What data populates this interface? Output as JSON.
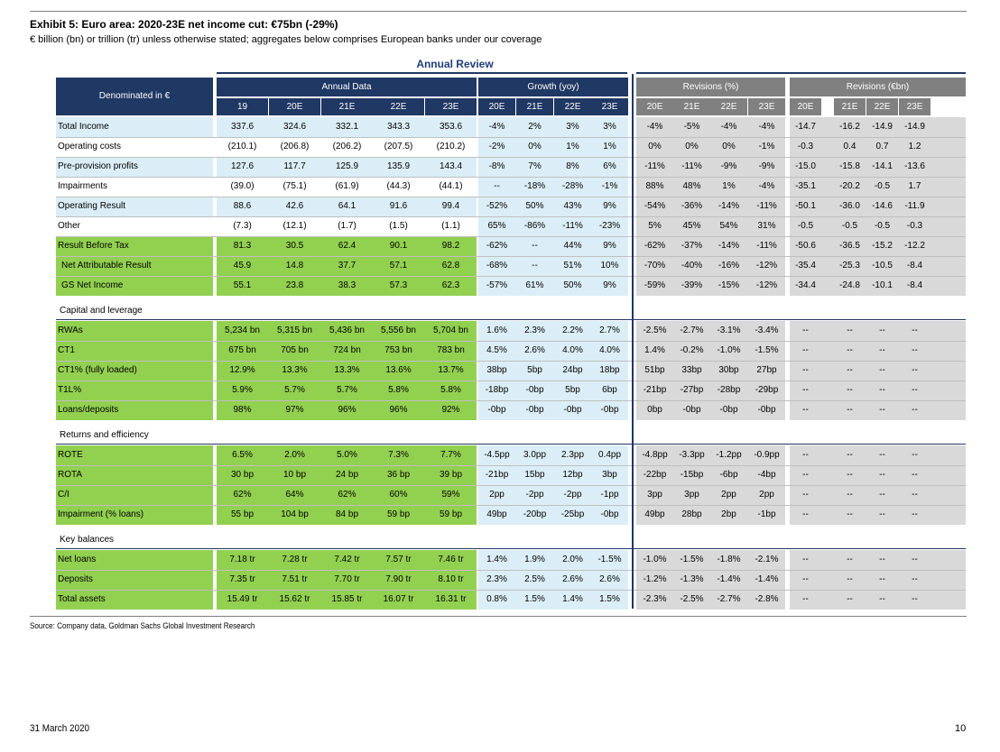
{
  "header": {
    "title": "Exhibit 5: Euro area: 2020-23E net income cut: €75bn (-29%)",
    "subtitle": "€ billion (bn) or trillion (tr) unless otherwise stated; aggregates below comprises European banks under our coverage",
    "annual_review": "Annual Review"
  },
  "table": {
    "denominated": "Denominated in €",
    "groups": [
      "Annual Data",
      "Growth (yoy)",
      "Revisions (%)",
      "Revisions (€bn)"
    ],
    "annual_cols": [
      "19",
      "20E",
      "21E",
      "22E",
      "23E"
    ],
    "growth_cols": [
      "20E",
      "21E",
      "22E",
      "23E"
    ],
    "revpct_cols": [
      "20E",
      "21E",
      "22E",
      "23E"
    ],
    "revbn_cols": [
      "20E",
      "21E",
      "22E",
      "23E"
    ],
    "sections": [
      {
        "title": "",
        "rows": [
          {
            "label": "Total Income",
            "annual": [
              "337.6",
              "324.6",
              "332.1",
              "343.3",
              "353.6"
            ],
            "growth": [
              "-4%",
              "2%",
              "3%",
              "3%"
            ],
            "revpct": [
              "-4%",
              "-5%",
              "-4%",
              "-4%"
            ],
            "revbn": [
              "-14.7",
              "-16.2",
              "-14.9",
              "-14.9"
            ]
          },
          {
            "label": "Operating costs",
            "annual": [
              "(210.1)",
              "(206.8)",
              "(206.2)",
              "(207.5)",
              "(210.2)"
            ],
            "growth": [
              "-2%",
              "0%",
              "1%",
              "1%"
            ],
            "revpct": [
              "0%",
              "0%",
              "0%",
              "-1%"
            ],
            "revbn": [
              "-0.3",
              "0.4",
              "0.7",
              "1.2"
            ]
          },
          {
            "label": "Pre-provision profits",
            "annual": [
              "127.6",
              "117.7",
              "125.9",
              "135.9",
              "143.4"
            ],
            "growth": [
              "-8%",
              "7%",
              "8%",
              "6%"
            ],
            "revpct": [
              "-11%",
              "-11%",
              "-9%",
              "-9%"
            ],
            "revbn": [
              "-15.0",
              "-15.8",
              "-14.1",
              "-13.6"
            ]
          },
          {
            "label": "Impairments",
            "annual": [
              "(39.0)",
              "(75.1)",
              "(61.9)",
              "(44.3)",
              "(44.1)"
            ],
            "growth": [
              "--",
              "-18%",
              "-28%",
              "-1%"
            ],
            "revpct": [
              "88%",
              "48%",
              "1%",
              "-4%"
            ],
            "revbn": [
              "-35.1",
              "-20.2",
              "-0.5",
              "1.7"
            ]
          },
          {
            "label": "Operating Result",
            "annual": [
              "88.6",
              "42.6",
              "64.1",
              "91.6",
              "99.4"
            ],
            "growth": [
              "-52%",
              "50%",
              "43%",
              "9%"
            ],
            "revpct": [
              "-54%",
              "-36%",
              "-14%",
              "-11%"
            ],
            "revbn": [
              "-50.1",
              "-36.0",
              "-14.6",
              "-11.9"
            ]
          },
          {
            "label": "Other",
            "annual": [
              "(7.3)",
              "(12.1)",
              "(1.7)",
              "(1.5)",
              "(1.1)"
            ],
            "growth": [
              "65%",
              "-86%",
              "-11%",
              "-23%"
            ],
            "revpct": [
              "5%",
              "45%",
              "54%",
              "31%"
            ],
            "revbn": [
              "-0.5",
              "-0.5",
              "-0.5",
              "-0.3"
            ]
          },
          {
            "label": "Result Before Tax",
            "annual": [
              "81.3",
              "30.5",
              "62.4",
              "90.1",
              "98.2"
            ],
            "growth": [
              "-62%",
              "--",
              "44%",
              "9%"
            ],
            "revpct": [
              "-62%",
              "-37%",
              "-14%",
              "-11%"
            ],
            "revbn": [
              "-50.6",
              "-36.5",
              "-15.2",
              "-12.2"
            ]
          },
          {
            "label": "Net Attributable Result",
            "annual": [
              "45.9",
              "14.8",
              "37.7",
              "57.1",
              "62.8"
            ],
            "growth": [
              "-68%",
              "--",
              "51%",
              "10%"
            ],
            "revpct": [
              "-70%",
              "-40%",
              "-16%",
              "-12%"
            ],
            "revbn": [
              "-35.4",
              "-25.3",
              "-10.5",
              "-8.4"
            ]
          },
          {
            "label": "GS Net Income",
            "annual": [
              "55.1",
              "23.8",
              "38.3",
              "57.3",
              "62.3"
            ],
            "growth": [
              "-57%",
              "61%",
              "50%",
              "9%"
            ],
            "revpct": [
              "-59%",
              "-39%",
              "-15%",
              "-12%"
            ],
            "revbn": [
              "-34.4",
              "-24.8",
              "-10.1",
              "-8.4"
            ]
          }
        ]
      },
      {
        "title": "Capital and leverage",
        "rows": [
          {
            "label": "RWAs",
            "annual": [
              "5,234 bn",
              "5,315 bn",
              "5,436 bn",
              "5,556 bn",
              "5,704 bn"
            ],
            "growth": [
              "1.6%",
              "2.3%",
              "2.2%",
              "2.7%"
            ],
            "revpct": [
              "-2.5%",
              "-2.7%",
              "-3.1%",
              "-3.4%"
            ],
            "revbn": [
              "--",
              "--",
              "--",
              "--"
            ]
          },
          {
            "label": "CT1",
            "annual": [
              "675 bn",
              "705 bn",
              "724 bn",
              "753 bn",
              "783 bn"
            ],
            "growth": [
              "4.5%",
              "2.6%",
              "4.0%",
              "4.0%"
            ],
            "revpct": [
              "1.4%",
              "-0.2%",
              "-1.0%",
              "-1.5%"
            ],
            "revbn": [
              "--",
              "--",
              "--",
              "--"
            ]
          },
          {
            "label": "CT1% (fully loaded)",
            "annual": [
              "12.9%",
              "13.3%",
              "13.3%",
              "13.6%",
              "13.7%"
            ],
            "growth": [
              "38bp",
              "5bp",
              "24bp",
              "18bp"
            ],
            "revpct": [
              "51bp",
              "33bp",
              "30bp",
              "27bp"
            ],
            "revbn": [
              "--",
              "--",
              "--",
              "--"
            ]
          },
          {
            "label": "T1L%",
            "annual": [
              "5.9%",
              "5.7%",
              "5.7%",
              "5.8%",
              "5.8%"
            ],
            "growth": [
              "-18bp",
              "-0bp",
              "5bp",
              "6bp"
            ],
            "revpct": [
              "-21bp",
              "-27bp",
              "-28bp",
              "-29bp"
            ],
            "revbn": [
              "--",
              "--",
              "--",
              "--"
            ]
          },
          {
            "label": "Loans/deposits",
            "annual": [
              "98%",
              "97%",
              "96%",
              "96%",
              "92%"
            ],
            "growth": [
              "-0bp",
              "-0bp",
              "-0bp",
              "-0bp"
            ],
            "revpct": [
              "0bp",
              "-0bp",
              "-0bp",
              "-0bp"
            ],
            "revbn": [
              "--",
              "--",
              "--",
              "--"
            ]
          }
        ]
      },
      {
        "title": "Returns and efficiency",
        "rows": [
          {
            "label": "ROTE",
            "annual": [
              "6.5%",
              "2.0%",
              "5.0%",
              "7.3%",
              "7.7%"
            ],
            "growth": [
              "-4.5pp",
              "3.0pp",
              "2.3pp",
              "0.4pp"
            ],
            "revpct": [
              "-4.8pp",
              "-3.3pp",
              "-1.2pp",
              "-0.9pp"
            ],
            "revbn": [
              "--",
              "--",
              "--",
              "--"
            ]
          },
          {
            "label": "ROTA",
            "annual": [
              "30 bp",
              "10 bp",
              "24 bp",
              "36 bp",
              "39 bp"
            ],
            "growth": [
              "-21bp",
              "15bp",
              "12bp",
              "3bp"
            ],
            "revpct": [
              "-22bp",
              "-15bp",
              "-6bp",
              "-4bp"
            ],
            "revbn": [
              "--",
              "--",
              "--",
              "--"
            ]
          },
          {
            "label": "C/I",
            "annual": [
              "62%",
              "64%",
              "62%",
              "60%",
              "59%"
            ],
            "growth": [
              "2pp",
              "-2pp",
              "-2pp",
              "-1pp"
            ],
            "revpct": [
              "3pp",
              "3pp",
              "2pp",
              "2pp"
            ],
            "revbn": [
              "--",
              "--",
              "--",
              "--"
            ]
          },
          {
            "label": "Impairment (% loans)",
            "annual": [
              "55 bp",
              "104 bp",
              "84 bp",
              "59 bp",
              "59 bp"
            ],
            "growth": [
              "49bp",
              "-20bp",
              "-25bp",
              "-0bp"
            ],
            "revpct": [
              "49bp",
              "28bp",
              "2bp",
              "-1bp"
            ],
            "revbn": [
              "--",
              "--",
              "--",
              "--"
            ]
          }
        ]
      },
      {
        "title": "Key balances",
        "rows": [
          {
            "label": "Net loans",
            "annual": [
              "7.18 tr",
              "7.28 tr",
              "7.42 tr",
              "7.57 tr",
              "7.46 tr"
            ],
            "growth": [
              "1.4%",
              "1.9%",
              "2.0%",
              "-1.5%"
            ],
            "revpct": [
              "-1.0%",
              "-1.5%",
              "-1.8%",
              "-2.1%"
            ],
            "revbn": [
              "--",
              "--",
              "--",
              "--"
            ]
          },
          {
            "label": "Deposits",
            "annual": [
              "7.35 tr",
              "7.51 tr",
              "7.70 tr",
              "7.90 tr",
              "8.10 tr"
            ],
            "growth": [
              "2.3%",
              "2.5%",
              "2.6%",
              "2.6%"
            ],
            "revpct": [
              "-1.2%",
              "-1.3%",
              "-1.4%",
              "-1.4%"
            ],
            "revbn": [
              "--",
              "--",
              "--",
              "--"
            ]
          },
          {
            "label": "Total assets",
            "annual": [
              "15.49 tr",
              "15.62 tr",
              "15.85 tr",
              "16.07 tr",
              "16.31 tr"
            ],
            "growth": [
              "0.8%",
              "1.5%",
              "1.4%",
              "1.5%"
            ],
            "revpct": [
              "-2.3%",
              "-2.5%",
              "-2.7%",
              "-2.8%"
            ],
            "revbn": [
              "--",
              "--",
              "--",
              "--"
            ]
          }
        ]
      }
    ]
  },
  "footer": {
    "source": "Source: Company data, Goldman Sachs Global Investment Research",
    "date": "31 March 2020",
    "page": "10"
  }
}
